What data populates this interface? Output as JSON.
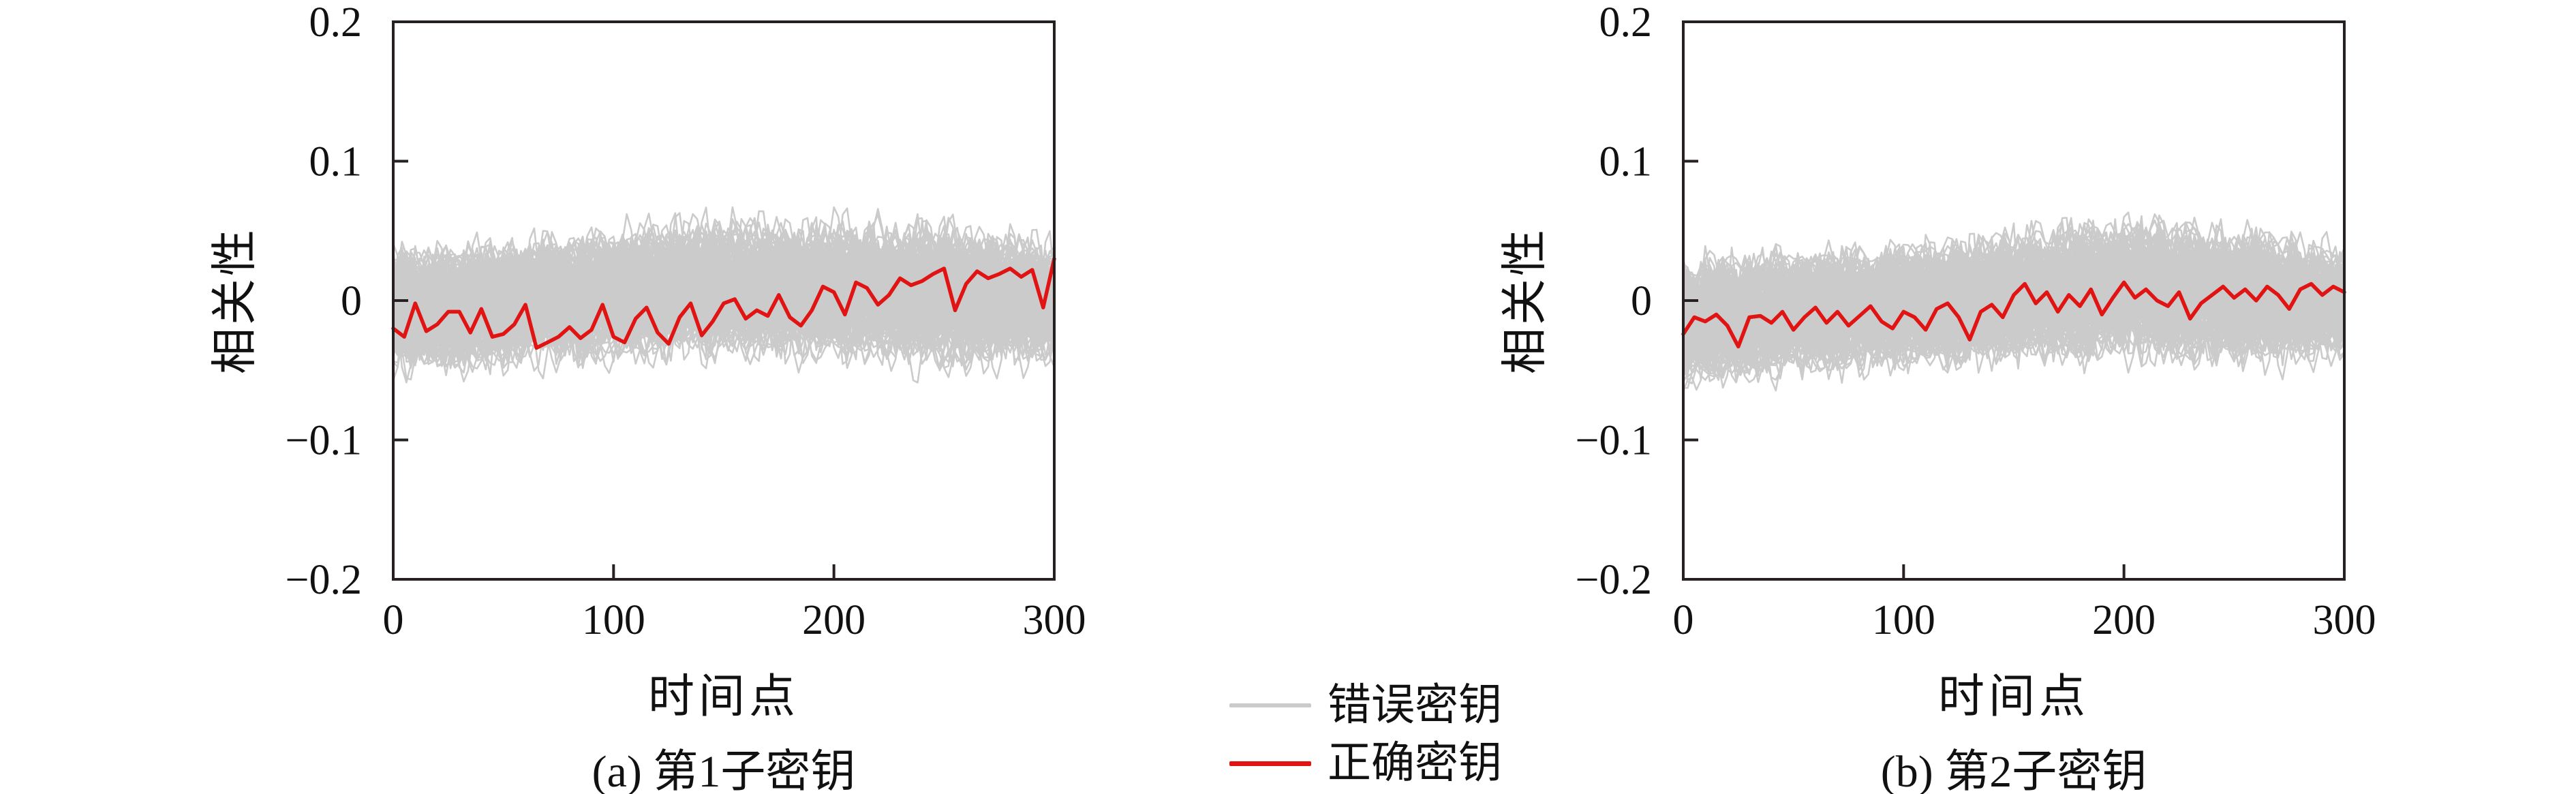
{
  "figure": {
    "background": "#ffffff",
    "axis_color": "#262020",
    "text_color": "#111111",
    "legend": {
      "items": [
        {
          "label": "错误密钥",
          "color": "#cbcbcb"
        },
        {
          "label": "正确密钥",
          "color": "#e11414"
        }
      ]
    }
  },
  "chart_data": [
    {
      "type": "line",
      "caption": "(a) 第1子密钥",
      "xlabel": "时间点",
      "ylabel": "相关性",
      "xlim": [
        0,
        300
      ],
      "ylim": [
        -0.2,
        0.2
      ],
      "xticks": [
        0,
        100,
        200,
        300
      ],
      "yticks": [
        0.2,
        0.1,
        0,
        -0.1,
        -0.2
      ],
      "ytick_labels": [
        "0.2",
        "0.1",
        "0",
        "−0.1",
        "−0.2"
      ],
      "grid": false,
      "legend_position": "shared-bottom-center",
      "series": [
        {
          "name": "错误密钥",
          "role": "wrong_keys",
          "color": "#cbcbcb",
          "count": 150,
          "band_x": [
            0,
            50,
            100,
            150,
            200,
            250,
            300
          ],
          "band_upper": [
            0.056,
            0.058,
            0.07,
            0.076,
            0.074,
            0.076,
            0.058
          ],
          "band_lower": [
            -0.07,
            -0.062,
            -0.06,
            -0.058,
            -0.06,
            -0.066,
            -0.062
          ]
        },
        {
          "name": "正确密钥",
          "role": "correct_key",
          "color": "#e11414",
          "x_step": 5,
          "values": [
            -0.02,
            -0.026,
            -0.002,
            -0.022,
            -0.017,
            -0.008,
            -0.008,
            -0.023,
            -0.006,
            -0.026,
            -0.024,
            -0.017,
            -0.003,
            -0.034,
            -0.03,
            -0.026,
            -0.019,
            -0.027,
            -0.021,
            -0.003,
            -0.026,
            -0.03,
            -0.013,
            -0.005,
            -0.023,
            -0.031,
            -0.012,
            -0.002,
            -0.025,
            -0.015,
            -0.002,
            0.001,
            -0.013,
            -0.007,
            -0.011,
            0.004,
            -0.012,
            -0.018,
            -0.007,
            0.01,
            0.006,
            -0.01,
            0.013,
            0.009,
            -0.003,
            0.004,
            0.016,
            0.011,
            0.014,
            0.019,
            0.023,
            -0.007,
            0.012,
            0.021,
            0.016,
            0.019,
            0.023,
            0.017,
            0.022,
            -0.005,
            0.03
          ]
        }
      ]
    },
    {
      "type": "line",
      "caption": "(b) 第2子密钥",
      "xlabel": "时间点",
      "ylabel": "相关性",
      "xlim": [
        0,
        300
      ],
      "ylim": [
        -0.2,
        0.2
      ],
      "xticks": [
        0,
        100,
        200,
        300
      ],
      "yticks": [
        0.2,
        0.1,
        0,
        -0.1,
        -0.2
      ],
      "ytick_labels": [
        "0.2",
        "0.1",
        "0",
        "−0.1",
        "−0.2"
      ],
      "grid": false,
      "legend_position": "shared-bottom-center",
      "series": [
        {
          "name": "错误密钥",
          "role": "wrong_keys",
          "color": "#cbcbcb",
          "count": 150,
          "band_x": [
            0,
            50,
            100,
            150,
            200,
            250,
            300
          ],
          "band_upper": [
            0.05,
            0.054,
            0.06,
            0.068,
            0.082,
            0.07,
            0.056
          ],
          "band_lower": [
            -0.08,
            -0.07,
            -0.066,
            -0.062,
            -0.06,
            -0.062,
            -0.056
          ]
        },
        {
          "name": "正确密钥",
          "role": "correct_key",
          "color": "#e11414",
          "x_step": 5,
          "values": [
            -0.024,
            -0.012,
            -0.015,
            -0.01,
            -0.018,
            -0.033,
            -0.012,
            -0.011,
            -0.016,
            -0.008,
            -0.021,
            -0.012,
            -0.005,
            -0.016,
            -0.008,
            -0.018,
            -0.011,
            -0.004,
            -0.015,
            -0.02,
            -0.008,
            -0.012,
            -0.021,
            -0.006,
            -0.002,
            -0.012,
            -0.028,
            -0.008,
            -0.003,
            -0.012,
            0.004,
            0.012,
            -0.002,
            0.006,
            -0.008,
            0.004,
            -0.004,
            0.008,
            -0.01,
            0.002,
            0.013,
            0.002,
            0.008,
            0.0,
            -0.004,
            0.006,
            -0.013,
            -0.002,
            0.004,
            0.01,
            0.002,
            0.008,
            0.0,
            0.01,
            0.004,
            -0.006,
            0.008,
            0.012,
            0.004,
            0.01,
            0.006
          ]
        }
      ]
    }
  ]
}
